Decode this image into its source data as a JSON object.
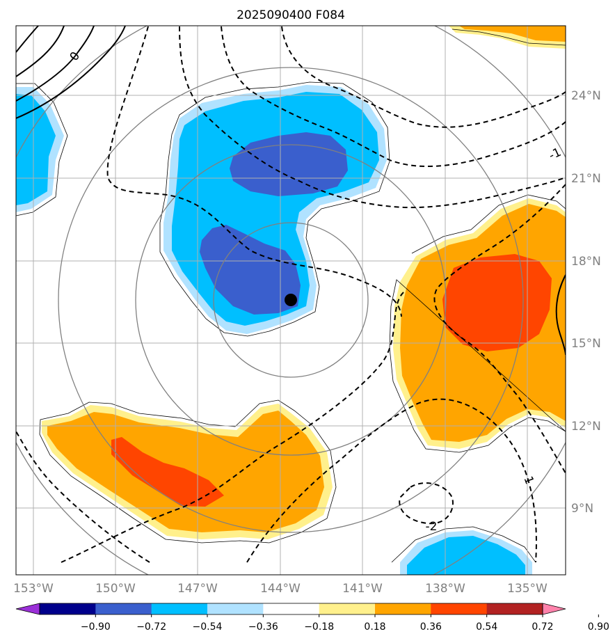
{
  "title": "2025090400 F084",
  "map": {
    "lon_labels": [
      "153°W",
      "150°W",
      "147°W",
      "144°W",
      "141°W",
      "138°W",
      "135°W"
    ],
    "lat_labels": [
      "24°N",
      "21°N",
      "18°N",
      "15°N",
      "12°N",
      "9°N"
    ],
    "contour_labels": [
      "0",
      "-1",
      "1",
      "-2"
    ],
    "marker": "storm-center-dot"
  },
  "colorbar": {
    "ticks": [
      "−0.90",
      "−0.72",
      "−0.54",
      "−0.36",
      "−0.18",
      "0.18",
      "0.36",
      "0.54",
      "0.72",
      "0.90"
    ],
    "colors": [
      "#9b30d8",
      "#00008b",
      "#3a5fcd",
      "#00bfff",
      "#b0e2ff",
      "#ffffff",
      "#fff08c",
      "#ffa500",
      "#ff4500",
      "#b22222",
      "#ff82ab"
    ]
  },
  "colors": {
    "light_blue": "#b0e2ff",
    "sky_blue": "#00bfff",
    "royal_blue": "#3a5fcd",
    "light_yellow": "#fff08c",
    "orange": "#ffa500",
    "red_orange": "#ff4500",
    "grid": "#a9a9a9",
    "range_rings": "#808080"
  }
}
